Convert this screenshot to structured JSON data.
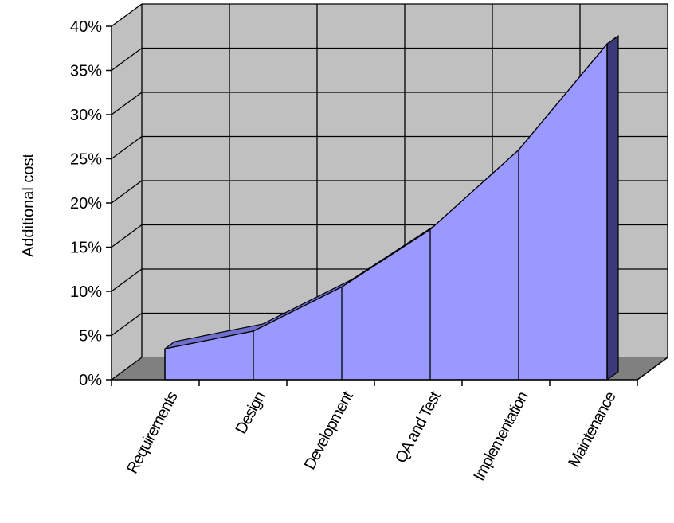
{
  "chart_data": {
    "type": "area",
    "categories": [
      "Requirements",
      "Design",
      "Development",
      "QA and Test",
      "Implementation",
      "Maintenance"
    ],
    "series": [
      {
        "values": [
          3.5,
          5.5,
          10.5,
          17,
          26,
          38
        ]
      }
    ],
    "ylabel": "Additional cost",
    "xlabel": "",
    "ylim": [
      0,
      40
    ],
    "yticks": [
      "0%",
      "5%",
      "10%",
      "15%",
      "20%",
      "25%",
      "30%",
      "35%",
      "40%"
    ],
    "grid": true,
    "legend": "none",
    "colors": {
      "area": "#9999ff",
      "area_side": "#3a3a7a",
      "area_top": "#7070cc",
      "wall": "#c0c0c0",
      "floor": "#808080",
      "grid": "#000000"
    }
  }
}
